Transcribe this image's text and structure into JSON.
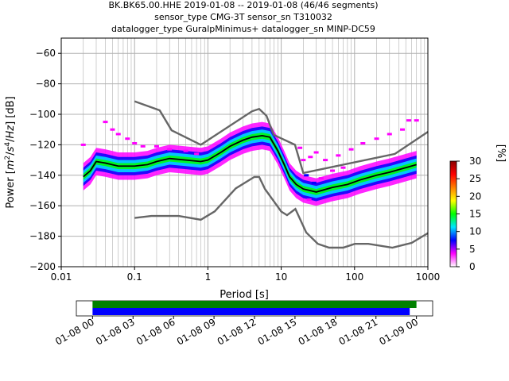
{
  "title_lines": [
    "BK.BK65.00.HHE   2019-01-08 -- 2019-01-08  (46/46 segments)",
    "sensor_type CMG-3T sensor_sn T310032",
    "datalogger_type GuralpMinimus+ datalogger_sn MINP-DC59"
  ],
  "chart_data": {
    "type": "heatmap",
    "xlabel": "Period [s]",
    "ylabel_parts": [
      "Power [",
      "m",
      "2",
      "/",
      "s",
      "4",
      "/",
      "Hz",
      "] [dB]"
    ],
    "x_scale": "log",
    "xlim": [
      0.01,
      1000
    ],
    "ylim": [
      -200,
      -50
    ],
    "x_ticks": [
      {
        "value": 0.01,
        "label": "0.01"
      },
      {
        "value": 0.1,
        "label": "0.1"
      },
      {
        "value": 1,
        "label": "1"
      },
      {
        "value": 10,
        "label": "10"
      },
      {
        "value": 100,
        "label": "100"
      },
      {
        "value": 1000,
        "label": "1000"
      }
    ],
    "y_ticks": [
      {
        "value": -60,
        "label": "−60"
      },
      {
        "value": -80,
        "label": "−80"
      },
      {
        "value": -100,
        "label": "−100"
      },
      {
        "value": -120,
        "label": "−120"
      },
      {
        "value": -140,
        "label": "−140"
      },
      {
        "value": -160,
        "label": "−160"
      },
      {
        "value": -180,
        "label": "−180"
      },
      {
        "value": -200,
        "label": "−200"
      }
    ],
    "grid": true,
    "colorbar": {
      "label": "[%]",
      "range": [
        0,
        30
      ],
      "ticks": [
        {
          "value": 0,
          "label": "0"
        },
        {
          "value": 5,
          "label": "5"
        },
        {
          "value": 10,
          "label": "10"
        },
        {
          "value": 15,
          "label": "15"
        },
        {
          "value": 20,
          "label": "20"
        },
        {
          "value": 25,
          "label": "25"
        },
        {
          "value": 30,
          "label": "30"
        }
      ],
      "colors": [
        "#ffffff",
        "#ff00ff",
        "#0000ff",
        "#00e5ff",
        "#00ff00",
        "#ffff00",
        "#ff7f00",
        "#ff0000",
        "#8b0000"
      ]
    },
    "noise_models": {
      "color": "#666666",
      "high": [
        [
          0.1,
          -91.5
        ],
        [
          0.22,
          -97.4
        ],
        [
          0.32,
          -110.5
        ],
        [
          0.8,
          -120
        ],
        [
          4,
          -98
        ],
        [
          5,
          -96.5
        ],
        [
          6.3,
          -101
        ],
        [
          7.9,
          -113.5
        ],
        [
          15.4,
          -120
        ],
        [
          20,
          -138.5
        ],
        [
          354.8,
          -126
        ],
        [
          1000,
          -111.5
        ]
      ],
      "low": [
        [
          0.1,
          -168
        ],
        [
          0.17,
          -166.7
        ],
        [
          0.4,
          -166.7
        ],
        [
          0.8,
          -169.2
        ],
        [
          1.24,
          -163.7
        ],
        [
          2.4,
          -148.6
        ],
        [
          4.3,
          -141.1
        ],
        [
          5,
          -141.1
        ],
        [
          6,
          -149
        ],
        [
          10,
          -163.8
        ],
        [
          12,
          -166.2
        ],
        [
          15.6,
          -162.1
        ],
        [
          21.9,
          -177.5
        ],
        [
          31.6,
          -185
        ],
        [
          45,
          -187.5
        ],
        [
          70,
          -187.5
        ],
        [
          101,
          -185
        ],
        [
          154,
          -185
        ],
        [
          328,
          -187.5
        ],
        [
          600,
          -184.4
        ],
        [
          1000,
          -178
        ]
      ]
    },
    "series": [
      {
        "color": "#000000",
        "points": [
          [
            0.02,
            -141
          ],
          [
            0.025,
            -137
          ],
          [
            0.03,
            -131
          ],
          [
            0.04,
            -132
          ],
          [
            0.06,
            -134
          ],
          [
            0.1,
            -134
          ],
          [
            0.15,
            -133
          ],
          [
            0.2,
            -131
          ],
          [
            0.3,
            -129
          ],
          [
            0.5,
            -130
          ],
          [
            0.8,
            -131
          ],
          [
            1,
            -130
          ],
          [
            1.5,
            -125
          ],
          [
            2,
            -121
          ],
          [
            3,
            -117
          ],
          [
            4,
            -115
          ],
          [
            5.5,
            -114
          ],
          [
            7,
            -115
          ],
          [
            9,
            -124
          ],
          [
            11,
            -133
          ],
          [
            13,
            -141
          ],
          [
            16,
            -146
          ],
          [
            20,
            -149
          ],
          [
            30,
            -151
          ],
          [
            50,
            -148
          ],
          [
            80,
            -146
          ],
          [
            120,
            -143
          ],
          [
            200,
            -140
          ],
          [
            300,
            -138
          ],
          [
            500,
            -135
          ],
          [
            700,
            -133
          ]
        ]
      }
    ],
    "density_bands": [
      {
        "points": [
          [
            0.02,
            -141
          ],
          [
            0.025,
            -137
          ],
          [
            0.03,
            -131
          ],
          [
            0.04,
            -132
          ],
          [
            0.06,
            -134
          ],
          [
            0.1,
            -134
          ],
          [
            0.15,
            -133
          ],
          [
            0.2,
            -131
          ],
          [
            0.3,
            -129
          ],
          [
            0.5,
            -130
          ],
          [
            0.8,
            -131
          ],
          [
            1,
            -130
          ],
          [
            1.5,
            -125
          ],
          [
            2,
            -121
          ],
          [
            3,
            -117
          ],
          [
            4,
            -115
          ],
          [
            5.5,
            -114
          ],
          [
            7,
            -115
          ],
          [
            9,
            -124
          ],
          [
            11,
            -133
          ],
          [
            13,
            -141
          ],
          [
            16,
            -146
          ],
          [
            20,
            -149
          ],
          [
            30,
            -151
          ],
          [
            50,
            -148
          ],
          [
            80,
            -146
          ],
          [
            120,
            -143
          ],
          [
            200,
            -140
          ],
          [
            300,
            -138
          ],
          [
            500,
            -135
          ],
          [
            700,
            -133
          ]
        ],
        "spread": 9,
        "color": "#ff00ff"
      },
      {
        "points": [
          [
            0.02,
            -141
          ],
          [
            0.025,
            -137
          ],
          [
            0.03,
            -131
          ],
          [
            0.04,
            -132
          ],
          [
            0.06,
            -134
          ],
          [
            0.1,
            -134
          ],
          [
            0.15,
            -133
          ],
          [
            0.2,
            -131
          ],
          [
            0.3,
            -129
          ],
          [
            0.5,
            -130
          ],
          [
            0.8,
            -131
          ],
          [
            1,
            -130
          ],
          [
            1.5,
            -125
          ],
          [
            2,
            -121
          ],
          [
            3,
            -117
          ],
          [
            4,
            -115
          ],
          [
            5.5,
            -114
          ],
          [
            7,
            -115
          ],
          [
            9,
            -124
          ],
          [
            11,
            -133
          ],
          [
            13,
            -141
          ],
          [
            16,
            -146
          ],
          [
            20,
            -149
          ],
          [
            30,
            -151
          ],
          [
            50,
            -148
          ],
          [
            80,
            -146
          ],
          [
            120,
            -143
          ],
          [
            200,
            -140
          ],
          [
            300,
            -138
          ],
          [
            500,
            -135
          ],
          [
            700,
            -133
          ]
        ],
        "spread": 6,
        "color": "#0000ff"
      },
      {
        "points": [
          [
            0.02,
            -141
          ],
          [
            0.025,
            -137
          ],
          [
            0.03,
            -131
          ],
          [
            0.04,
            -132
          ],
          [
            0.06,
            -134
          ],
          [
            0.1,
            -134
          ],
          [
            0.15,
            -133
          ],
          [
            0.2,
            -131
          ],
          [
            0.3,
            -129
          ],
          [
            0.5,
            -130
          ],
          [
            0.8,
            -131
          ],
          [
            1,
            -130
          ],
          [
            1.5,
            -125
          ],
          [
            2,
            -121
          ],
          [
            3,
            -117
          ],
          [
            4,
            -115
          ],
          [
            5.5,
            -114
          ],
          [
            7,
            -115
          ],
          [
            9,
            -124
          ],
          [
            11,
            -133
          ],
          [
            13,
            -141
          ],
          [
            16,
            -146
          ],
          [
            20,
            -149
          ],
          [
            30,
            -151
          ],
          [
            50,
            -148
          ],
          [
            80,
            -146
          ],
          [
            120,
            -143
          ],
          [
            200,
            -140
          ],
          [
            300,
            -138
          ],
          [
            500,
            -135
          ],
          [
            700,
            -133
          ]
        ],
        "spread": 4,
        "color": "#00e5ff"
      },
      {
        "points": [
          [
            0.02,
            -141
          ],
          [
            0.025,
            -137
          ],
          [
            0.03,
            -131
          ],
          [
            0.04,
            -132
          ],
          [
            0.06,
            -134
          ],
          [
            0.1,
            -134
          ],
          [
            0.15,
            -133
          ],
          [
            0.2,
            -131
          ],
          [
            0.3,
            -129
          ],
          [
            0.5,
            -130
          ],
          [
            0.8,
            -131
          ],
          [
            1,
            -130
          ],
          [
            1.5,
            -125
          ],
          [
            2,
            -121
          ],
          [
            3,
            -117
          ],
          [
            4,
            -115
          ],
          [
            5.5,
            -114
          ],
          [
            7,
            -115
          ],
          [
            9,
            -124
          ],
          [
            11,
            -133
          ],
          [
            13,
            -141
          ],
          [
            16,
            -146
          ],
          [
            20,
            -149
          ],
          [
            30,
            -151
          ],
          [
            50,
            -148
          ],
          [
            80,
            -146
          ],
          [
            120,
            -143
          ],
          [
            200,
            -140
          ],
          [
            300,
            -138
          ],
          [
            500,
            -135
          ],
          [
            700,
            -133
          ]
        ],
        "spread": 2,
        "color": "#00ff00"
      }
    ],
    "scatter_cells": [
      {
        "x": 0.04,
        "y": -105,
        "color": "#ff00ff"
      },
      {
        "x": 0.05,
        "y": -110,
        "color": "#ff00ff"
      },
      {
        "x": 0.06,
        "y": -113,
        "color": "#ff00ff"
      },
      {
        "x": 0.08,
        "y": -116,
        "color": "#ff00ff"
      },
      {
        "x": 0.1,
        "y": -119,
        "color": "#ff00ff"
      },
      {
        "x": 0.13,
        "y": -121,
        "color": "#ff00ff"
      },
      {
        "x": 0.2,
        "y": -121,
        "color": "#ff00ff"
      },
      {
        "x": 0.3,
        "y": -123,
        "color": "#ff00ff"
      },
      {
        "x": 0.5,
        "y": -124,
        "color": "#ff00ff"
      },
      {
        "x": 0.7,
        "y": -126,
        "color": "#ff00ff"
      },
      {
        "x": 0.02,
        "y": -120,
        "color": "#ff00ff"
      },
      {
        "x": 18,
        "y": -122,
        "color": "#ff00ff"
      },
      {
        "x": 20,
        "y": -130,
        "color": "#ff00ff"
      },
      {
        "x": 25,
        "y": -128,
        "color": "#ff00ff"
      },
      {
        "x": 30,
        "y": -125,
        "color": "#ff00ff"
      },
      {
        "x": 40,
        "y": -130,
        "color": "#ff00ff"
      },
      {
        "x": 60,
        "y": -127,
        "color": "#ff00ff"
      },
      {
        "x": 90,
        "y": -123,
        "color": "#ff00ff"
      },
      {
        "x": 130,
        "y": -119,
        "color": "#ff00ff"
      },
      {
        "x": 200,
        "y": -116,
        "color": "#ff00ff"
      },
      {
        "x": 300,
        "y": -113,
        "color": "#ff00ff"
      },
      {
        "x": 450,
        "y": -110,
        "color": "#ff00ff"
      },
      {
        "x": 550,
        "y": -104,
        "color": "#ff00ff"
      },
      {
        "x": 700,
        "y": -104,
        "color": "#ff00ff"
      },
      {
        "x": 35,
        "y": -142,
        "color": "#ff00ff"
      },
      {
        "x": 50,
        "y": -137,
        "color": "#ff00ff"
      },
      {
        "x": 70,
        "y": -135,
        "color": "#ff00ff"
      },
      {
        "x": 24,
        "y": -156,
        "color": "#ff00ff"
      },
      {
        "x": 22,
        "y": -140,
        "color": "#0000ff"
      },
      {
        "x": 28,
        "y": -145,
        "color": "#0000ff"
      }
    ]
  },
  "timeline": {
    "x_ticks": [
      {
        "value": 0,
        "label": "01-08 00"
      },
      {
        "value": 3,
        "label": "01-08 03"
      },
      {
        "value": 6,
        "label": "01-08 06"
      },
      {
        "value": 9,
        "label": "01-08 09"
      },
      {
        "value": 12,
        "label": "01-08 12"
      },
      {
        "value": 15,
        "label": "01-08 15"
      },
      {
        "value": 18,
        "label": "01-08 18"
      },
      {
        "value": 21,
        "label": "01-08 21"
      },
      {
        "value": 24,
        "label": "01-09 00"
      }
    ],
    "xlim": [
      -1.2,
      25.2
    ],
    "bars": [
      {
        "start": 0,
        "end": 24,
        "color": "#008000"
      },
      {
        "start": 0,
        "end": 23.5,
        "color": "#0000ff"
      }
    ]
  }
}
